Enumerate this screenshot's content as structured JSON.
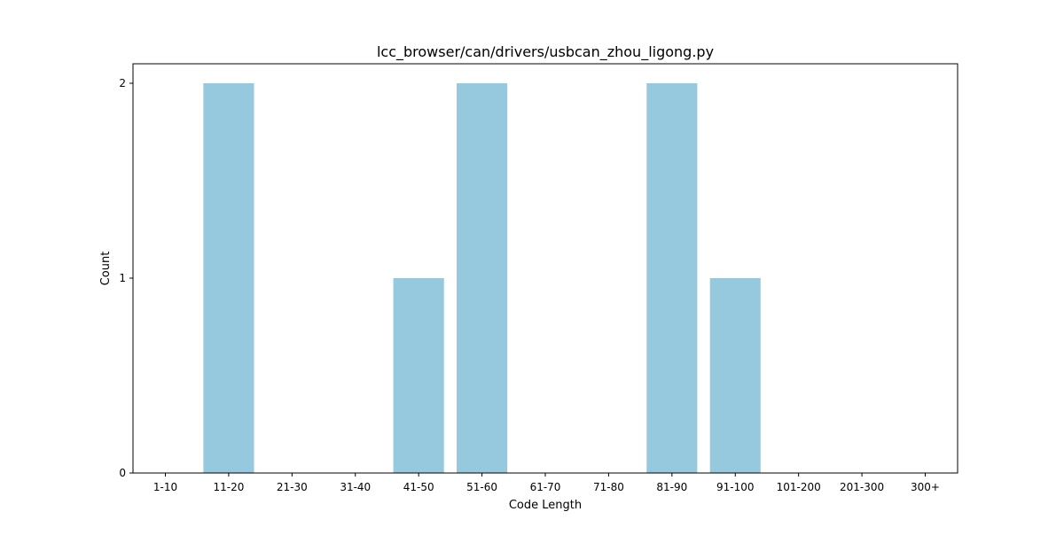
{
  "chart_data": {
    "type": "bar",
    "title": "lcc_browser/can/drivers/usbcan_zhou_ligong.py",
    "xlabel": "Code Length",
    "ylabel": "Count",
    "categories": [
      "1-10",
      "11-20",
      "21-30",
      "31-40",
      "41-50",
      "51-60",
      "61-70",
      "71-80",
      "81-90",
      "91-100",
      "101-200",
      "201-300",
      "300+"
    ],
    "values": [
      0,
      2,
      0,
      0,
      1,
      2,
      0,
      0,
      2,
      1,
      0,
      0,
      0
    ],
    "yticks": [
      "0",
      "1",
      "2"
    ],
    "ylim": [
      0,
      2.1
    ],
    "grid": false,
    "bar_color": "#96c9dd"
  }
}
